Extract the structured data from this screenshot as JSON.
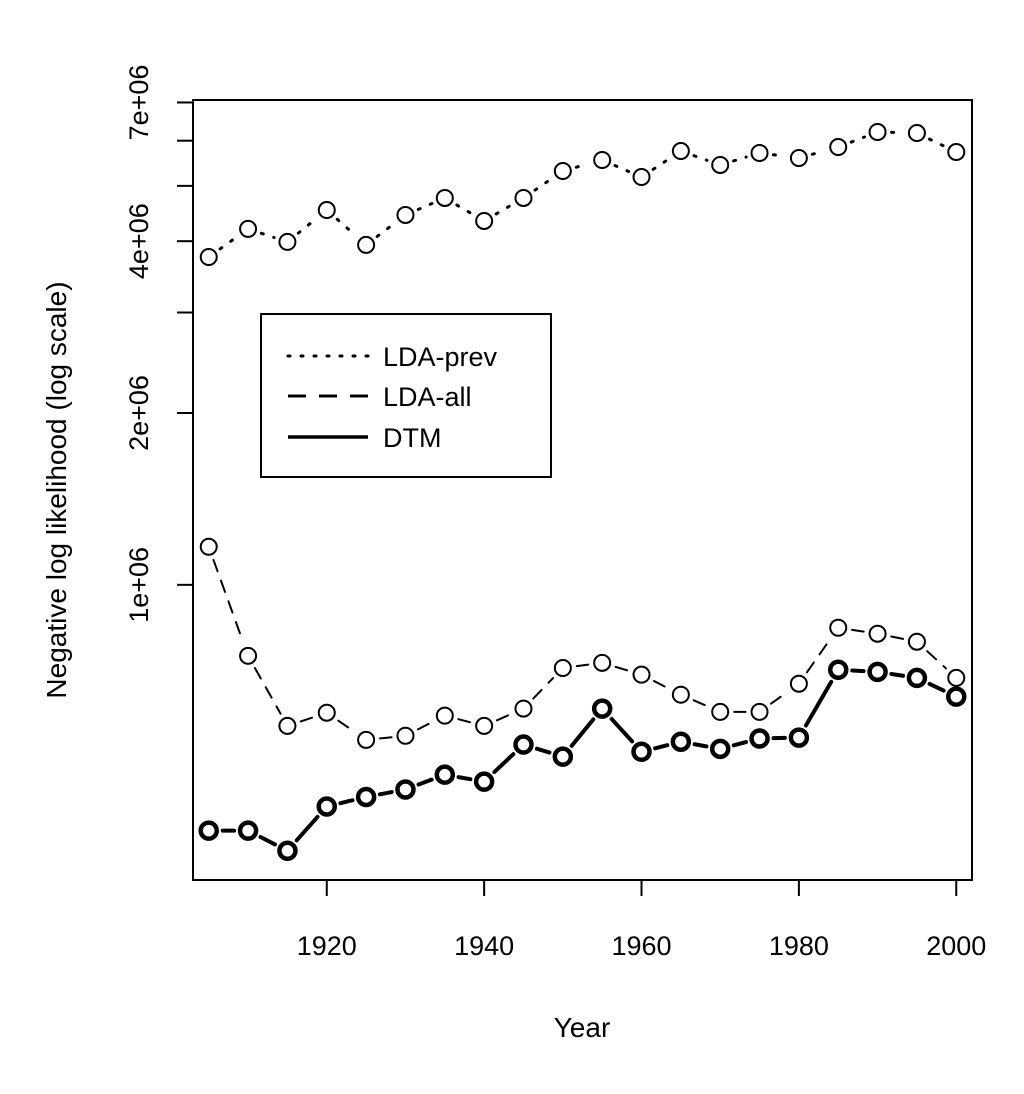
{
  "chart_data": {
    "type": "line",
    "title": "",
    "xlabel": "Year",
    "ylabel": "Negative log likelihood (log scale)",
    "y_scale": "log",
    "xlim": [
      1903,
      2002
    ],
    "ylim": [
      304000,
      7070000
    ],
    "x_ticks": [
      1920,
      1940,
      1960,
      1980,
      2000
    ],
    "x_tick_labels": [
      "1920",
      "1940",
      "1960",
      "1980",
      "2000"
    ],
    "y_ticks": [
      1000000,
      2000000,
      3000000,
      4000000,
      5000000,
      6000000,
      7000000
    ],
    "y_tick_labels": [
      {
        "value": 1000000,
        "label": "1e+06"
      },
      {
        "value": 2000000,
        "label": "2e+06"
      },
      {
        "value": 4000000,
        "label": "4e+06"
      },
      {
        "value": 7000000,
        "label": "7e+06"
      }
    ],
    "x": [
      1905,
      1910,
      1915,
      1920,
      1925,
      1930,
      1935,
      1940,
      1945,
      1950,
      1955,
      1960,
      1965,
      1970,
      1975,
      1980,
      1985,
      1990,
      1995,
      2000
    ],
    "series": [
      {
        "name": "LDA-prev",
        "style": "dotted",
        "values": [
          3753000,
          4203000,
          3988000,
          4536000,
          3940000,
          4446000,
          4762000,
          4340000,
          4762000,
          5309000,
          5550000,
          5182000,
          5755000,
          5440000,
          5709000,
          5594000,
          5848000,
          6214000,
          6189000,
          5731000
        ]
      },
      {
        "name": "LDA-all",
        "style": "dashed",
        "values": [
          1166000,
          751000,
          566000,
          597000,
          535000,
          544000,
          590000,
          566000,
          607000,
          715000,
          730000,
          696000,
          642000,
          599000,
          599000,
          671000,
          841000,
          821000,
          795000,
          687000
        ]
      },
      {
        "name": "DTM",
        "style": "solid",
        "values": [
          371000,
          371000,
          342000,
          409000,
          425000,
          438000,
          465000,
          452000,
          525000,
          500000,
          607000,
          510000,
          531000,
          516000,
          538000,
          540000,
          710000,
          704000,
          687000,
          637000
        ]
      }
    ],
    "grid": false,
    "legend_position": "top-left",
    "legend": [
      "LDA-prev",
      "LDA-all",
      "DTM"
    ]
  }
}
